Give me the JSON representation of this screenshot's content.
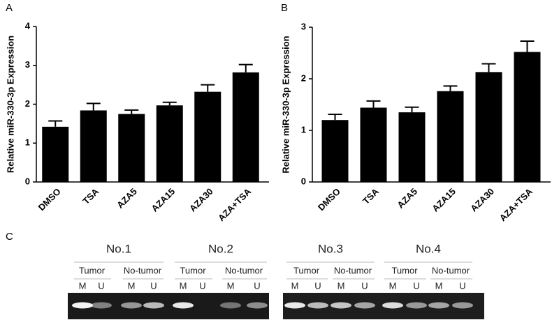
{
  "panels": [
    "A",
    "B",
    "C"
  ],
  "chart_data": [
    {
      "type": "bar",
      "ylabel": "Relative miR-330-3p Expression",
      "categories": [
        "DMSO",
        "TSA",
        "AZA5",
        "AZA15",
        "AZA30",
        "AZA+TSA"
      ],
      "values": [
        1.42,
        1.84,
        1.75,
        1.97,
        2.32,
        2.82
      ],
      "errors": [
        0.15,
        0.18,
        0.1,
        0.08,
        0.18,
        0.2
      ],
      "color": "#000000",
      "ylim": [
        0,
        4
      ],
      "yticks": [
        0,
        1,
        2,
        3,
        4
      ]
    },
    {
      "type": "bar",
      "ylabel": "Relative miR-330-3p Expression",
      "categories": [
        "DMSO",
        "TSA",
        "AZA5",
        "AZA15",
        "AZA30",
        "AZA+TSA"
      ],
      "values": [
        1.2,
        1.44,
        1.35,
        1.76,
        2.13,
        2.52
      ],
      "errors": [
        0.11,
        0.13,
        0.1,
        0.1,
        0.16,
        0.21
      ],
      "color": "#000000",
      "ylim": [
        0,
        3
      ],
      "yticks": [
        0,
        1,
        2,
        3
      ]
    }
  ],
  "gel": {
    "groups": [
      {
        "label": "No.1",
        "subgroups": [
          {
            "label": "Tumor",
            "lanes": [
              "M",
              "U"
            ]
          },
          {
            "label": "No-tumor",
            "lanes": [
              "M",
              "U"
            ]
          }
        ]
      },
      {
        "label": "No.2",
        "subgroups": [
          {
            "label": "Tumor",
            "lanes": [
              "M",
              "U"
            ]
          },
          {
            "label": "No-tumor",
            "lanes": [
              "M",
              "U"
            ]
          }
        ]
      },
      {
        "label": "No.3",
        "subgroups": [
          {
            "label": "Tumor",
            "lanes": [
              "M",
              "U"
            ]
          },
          {
            "label": "No-tumor",
            "lanes": [
              "M",
              "U"
            ]
          }
        ]
      },
      {
        "label": "No.4",
        "subgroups": [
          {
            "label": "Tumor",
            "lanes": [
              "M",
              "U"
            ]
          },
          {
            "label": "No-tumor",
            "lanes": [
              "M",
              "U"
            ]
          }
        ]
      }
    ]
  }
}
